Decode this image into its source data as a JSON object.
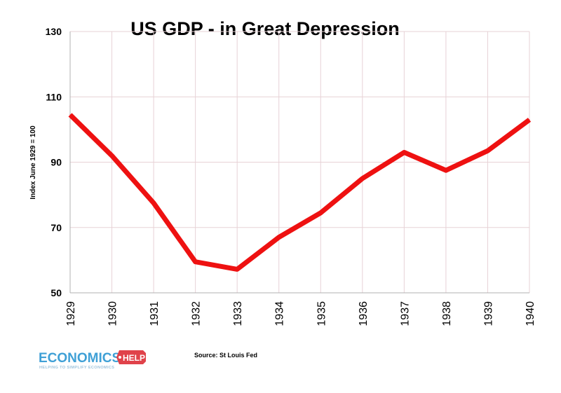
{
  "colors": {
    "line": "#ee1111",
    "grid": "#e7d2d6",
    "axis": "#b0b0b0",
    "logo_blue": "#3fa0d6",
    "logo_red": "#e0424a"
  },
  "logo": {
    "main": "ECONOMICS",
    "badge": "HELP",
    "tagline": "HELPING TO SIMPLIFY ECONOMICS"
  },
  "source": "Source: St Louis Fed",
  "chart_data": {
    "type": "line",
    "title": "US GDP - in Great Depression",
    "ylabel": "Index June 1929 = 100",
    "xlabel": "",
    "categories": [
      "1929",
      "1930",
      "1931",
      "1932",
      "1933",
      "1934",
      "1935",
      "1936",
      "1937",
      "1938",
      "1939",
      "1940"
    ],
    "series": [
      {
        "values": [
          104.5,
          92,
          77.5,
          59.5,
          57.2,
          67,
          74.5,
          85,
          93,
          87.5,
          93.5,
          103
        ]
      }
    ],
    "yticks": [
      50,
      70,
      90,
      110,
      130
    ],
    "ylim": [
      50,
      130
    ],
    "grid": true,
    "legend": "none"
  }
}
